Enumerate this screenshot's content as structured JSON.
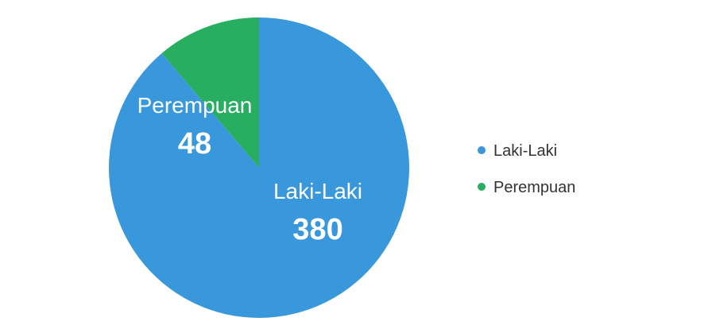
{
  "chart_data": {
    "type": "pie",
    "slices": [
      {
        "label": "Laki-Laki",
        "value": 380,
        "color": "#3898DB"
      },
      {
        "label": "Perempuan",
        "value": 48,
        "color": "#27AE60"
      }
    ],
    "legend": {
      "placement": "right",
      "entries": [
        "Laki-Laki",
        "Perempuan"
      ]
    }
  }
}
